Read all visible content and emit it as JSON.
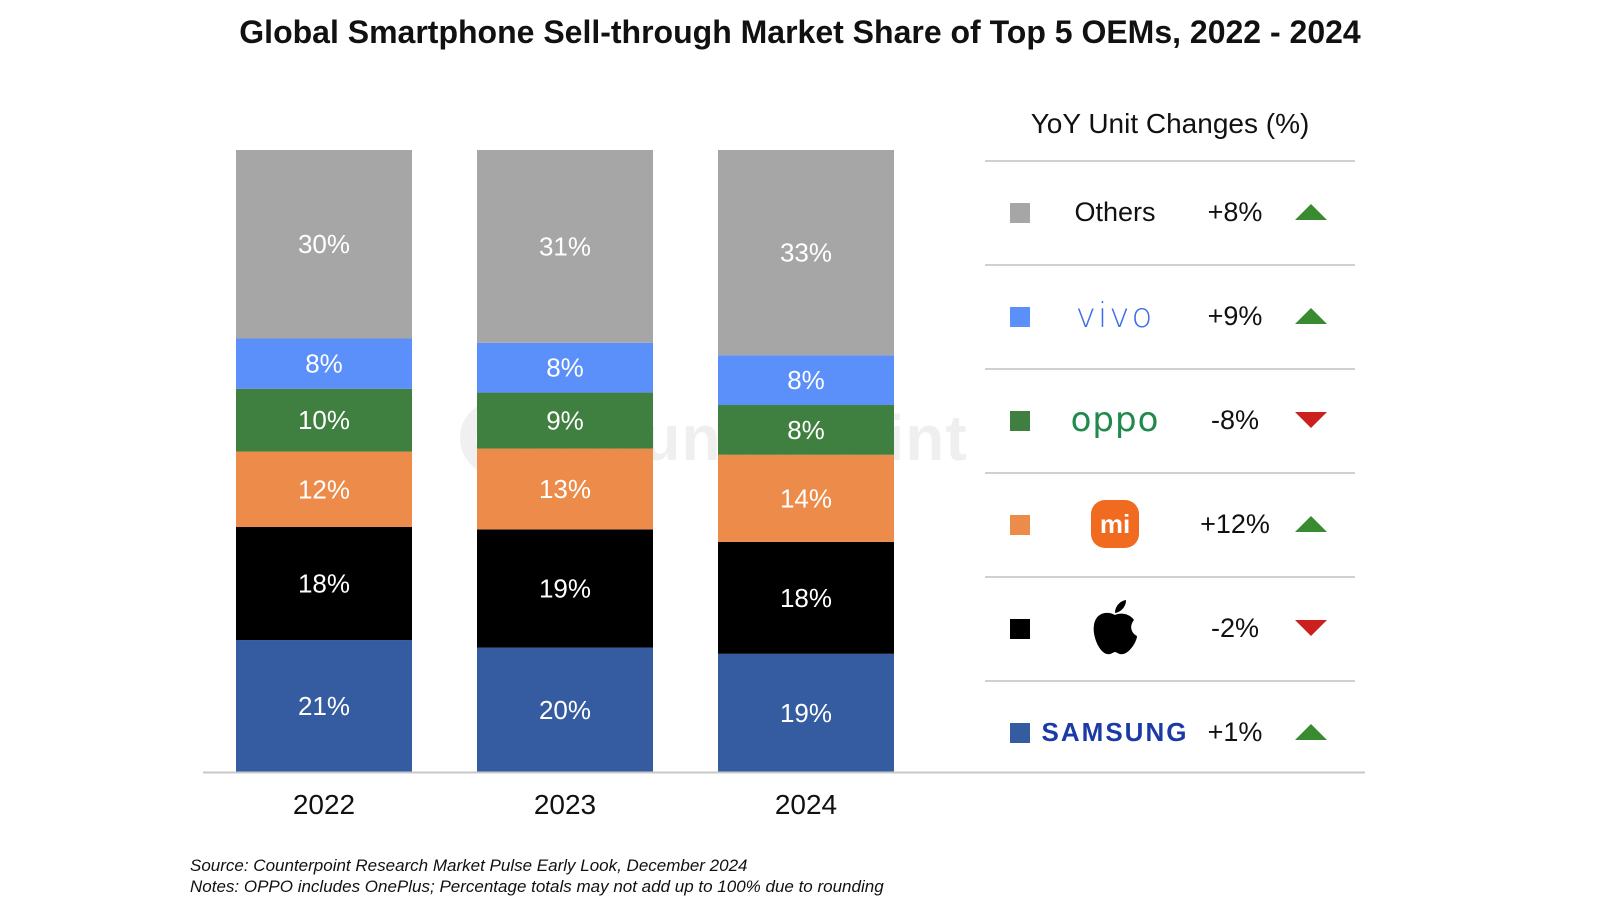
{
  "title": "Global Smartphone Sell-through Market Share of Top 5 OEMs, 2022 - 2024",
  "watermark": "Counterpoint",
  "legend_title": "YoY Unit Changes (%)",
  "footnotes": {
    "source": "Source: Counterpoint Research Market Pulse Early Look, December 2024",
    "notes": "Notes: OPPO includes OnePlus; Percentage totals may not add up to 100% due to rounding"
  },
  "legend": [
    {
      "label": "Others",
      "brand_style": "text",
      "color": "#a6a6a6",
      "yoy": "+8%",
      "direction": "up"
    },
    {
      "label": "vivo",
      "brand_style": "vivo",
      "color": "#5b8ff9",
      "yoy": "+9%",
      "direction": "up"
    },
    {
      "label": "oppo",
      "brand_style": "oppo",
      "color": "#3f7f3f",
      "yoy": "-8%",
      "direction": "down"
    },
    {
      "label": "mi",
      "brand_style": "mi-logo-icon",
      "color": "#ed8c4a",
      "yoy": "+12%",
      "direction": "up"
    },
    {
      "label": "",
      "brand_style": "apple-logo-icon",
      "color": "#000000",
      "yoy": "-2%",
      "direction": "down"
    },
    {
      "label": "SAMSUNG",
      "brand_style": "samsung",
      "color": "#355ca0",
      "yoy": "+1%",
      "direction": "up"
    }
  ],
  "arrow_colors": {
    "up": "#3a8a2f",
    "down": "#cc1f1f"
  },
  "chart_data": {
    "type": "bar",
    "stacked": true,
    "percent_stacked": true,
    "categories": [
      "2022",
      "2023",
      "2024"
    ],
    "series": [
      {
        "name": "SAMSUNG",
        "color": "#355ca0",
        "values": [
          21,
          20,
          19
        ],
        "labels": [
          "21%",
          "20%",
          "19%"
        ]
      },
      {
        "name": "Apple",
        "color": "#000000",
        "values": [
          18,
          19,
          18
        ],
        "labels": [
          "18%",
          "19%",
          "18%"
        ]
      },
      {
        "name": "mi",
        "color": "#ed8c4a",
        "values": [
          12,
          13,
          14
        ],
        "labels": [
          "12%",
          "13%",
          "14%"
        ]
      },
      {
        "name": "oppo",
        "color": "#3f7f3f",
        "values": [
          10,
          9,
          8
        ],
        "labels": [
          "10%",
          "9%",
          "8%"
        ]
      },
      {
        "name": "vivo",
        "color": "#5b8ff9",
        "values": [
          8,
          8,
          8
        ],
        "labels": [
          "8%",
          "8%",
          "8%"
        ]
      },
      {
        "name": "Others",
        "color": "#a6a6a6",
        "values": [
          30,
          31,
          33
        ],
        "labels": [
          "30%",
          "31%",
          "33%"
        ]
      }
    ],
    "ylim": [
      0,
      100
    ],
    "grid": false,
    "legend_position": "right"
  }
}
